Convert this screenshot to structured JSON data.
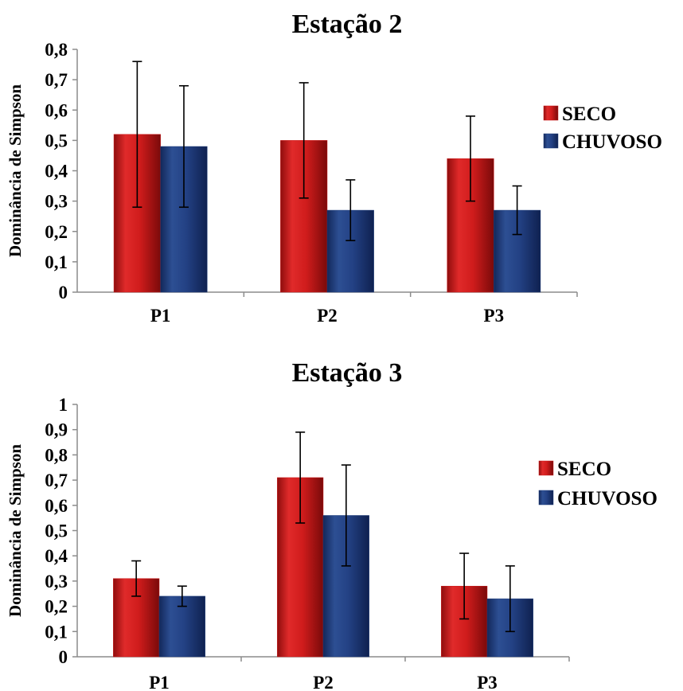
{
  "chart_data": [
    {
      "type": "bar",
      "title": "Estação 2",
      "ylabel": "Dominância de Simpson",
      "xlabel": "",
      "categories": [
        "P1",
        "P2",
        "P3"
      ],
      "ylim": [
        0,
        0.8
      ],
      "yticks": [
        "0",
        "0,1",
        "0,2",
        "0,3",
        "0,4",
        "0,5",
        "0,6",
        "0,7",
        "0,8"
      ],
      "series": [
        {
          "name": "SECO",
          "color": "#cc1a1a",
          "values": [
            0.52,
            0.5,
            0.44
          ],
          "err_low": [
            0.28,
            0.31,
            0.3
          ],
          "err_high": [
            0.76,
            0.69,
            0.58
          ]
        },
        {
          "name": "CHUVOSO",
          "color": "#1f3d7a",
          "values": [
            0.48,
            0.27,
            0.27
          ],
          "err_low": [
            0.28,
            0.17,
            0.19
          ],
          "err_high": [
            0.68,
            0.37,
            0.35
          ]
        }
      ],
      "legend": "right",
      "grid": false
    },
    {
      "type": "bar",
      "title": "Estação 3",
      "ylabel": "Dominância de Simpson",
      "xlabel": "",
      "categories": [
        "P1",
        "P2",
        "P3"
      ],
      "ylim": [
        0,
        1
      ],
      "yticks": [
        "0",
        "0,1",
        "0,2",
        "0,3",
        "0,4",
        "0,5",
        "0,6",
        "0,7",
        "0,8",
        "0,9",
        "1"
      ],
      "series": [
        {
          "name": "SECO",
          "color": "#cc1a1a",
          "values": [
            0.31,
            0.71,
            0.28
          ],
          "err_low": [
            0.24,
            0.53,
            0.15
          ],
          "err_high": [
            0.38,
            0.89,
            0.41
          ]
        },
        {
          "name": "CHUVOSO",
          "color": "#1f3d7a",
          "values": [
            0.24,
            0.56,
            0.23
          ],
          "err_low": [
            0.2,
            0.36,
            0.1
          ],
          "err_high": [
            0.28,
            0.76,
            0.36
          ]
        }
      ],
      "legend": "right",
      "grid": false
    }
  ]
}
